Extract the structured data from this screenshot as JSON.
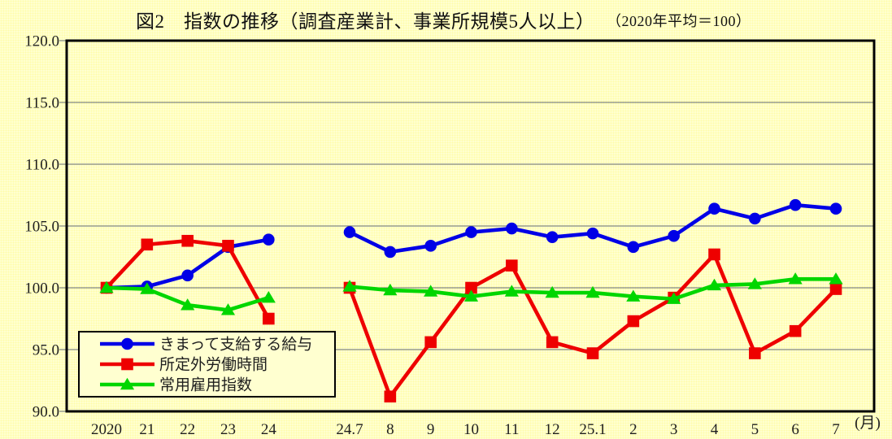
{
  "page": {
    "background": "#FFFFD0",
    "border_color": "#000000",
    "gridline_color": "#636b76",
    "text_color": "#1e1e1e"
  },
  "chart_data": {
    "type": "line",
    "title": "図2　指数の推移（調査産業計、事業所規模5人以上）",
    "subtitle": "（2020年平均＝100）",
    "ylim": [
      90.0,
      120.0
    ],
    "ytick_step": 5.0,
    "yticks": [
      "120.0",
      "115.0",
      "110.0",
      "105.0",
      "100.0",
      "95.0",
      "90.0"
    ],
    "grid": true,
    "x_unit_label": "(月)",
    "categories": [
      "2020",
      "21",
      "22",
      "23",
      "24",
      "",
      "24.7",
      "8",
      "9",
      "10",
      "11",
      "12",
      "25.1",
      "2",
      "3",
      "4",
      "5",
      "6",
      "7"
    ],
    "legend_position": "inside-bottom-left",
    "series": [
      {
        "name": "きまって支給する給与",
        "color": "#0000E6",
        "marker": "circle",
        "values": [
          100.0,
          100.1,
          101.0,
          103.3,
          103.9,
          null,
          104.5,
          102.9,
          103.4,
          104.5,
          104.8,
          104.1,
          104.4,
          103.3,
          104.2,
          106.4,
          105.6,
          106.7,
          106.4
        ]
      },
      {
        "name": "所定外労働時間",
        "color": "#EE0000",
        "marker": "square",
        "values": [
          100.0,
          103.5,
          103.8,
          103.4,
          97.5,
          null,
          100.0,
          91.2,
          95.6,
          100.0,
          101.8,
          95.6,
          94.7,
          97.3,
          99.2,
          102.7,
          94.7,
          96.5,
          99.9
        ]
      },
      {
        "name": "常用雇用指数",
        "color": "#00D600",
        "marker": "triangle",
        "values": [
          100.0,
          99.9,
          98.6,
          98.2,
          99.2,
          null,
          100.1,
          99.8,
          99.7,
          99.3,
          99.7,
          99.6,
          99.6,
          99.3,
          99.1,
          100.2,
          100.3,
          100.7,
          100.7
        ]
      }
    ]
  }
}
